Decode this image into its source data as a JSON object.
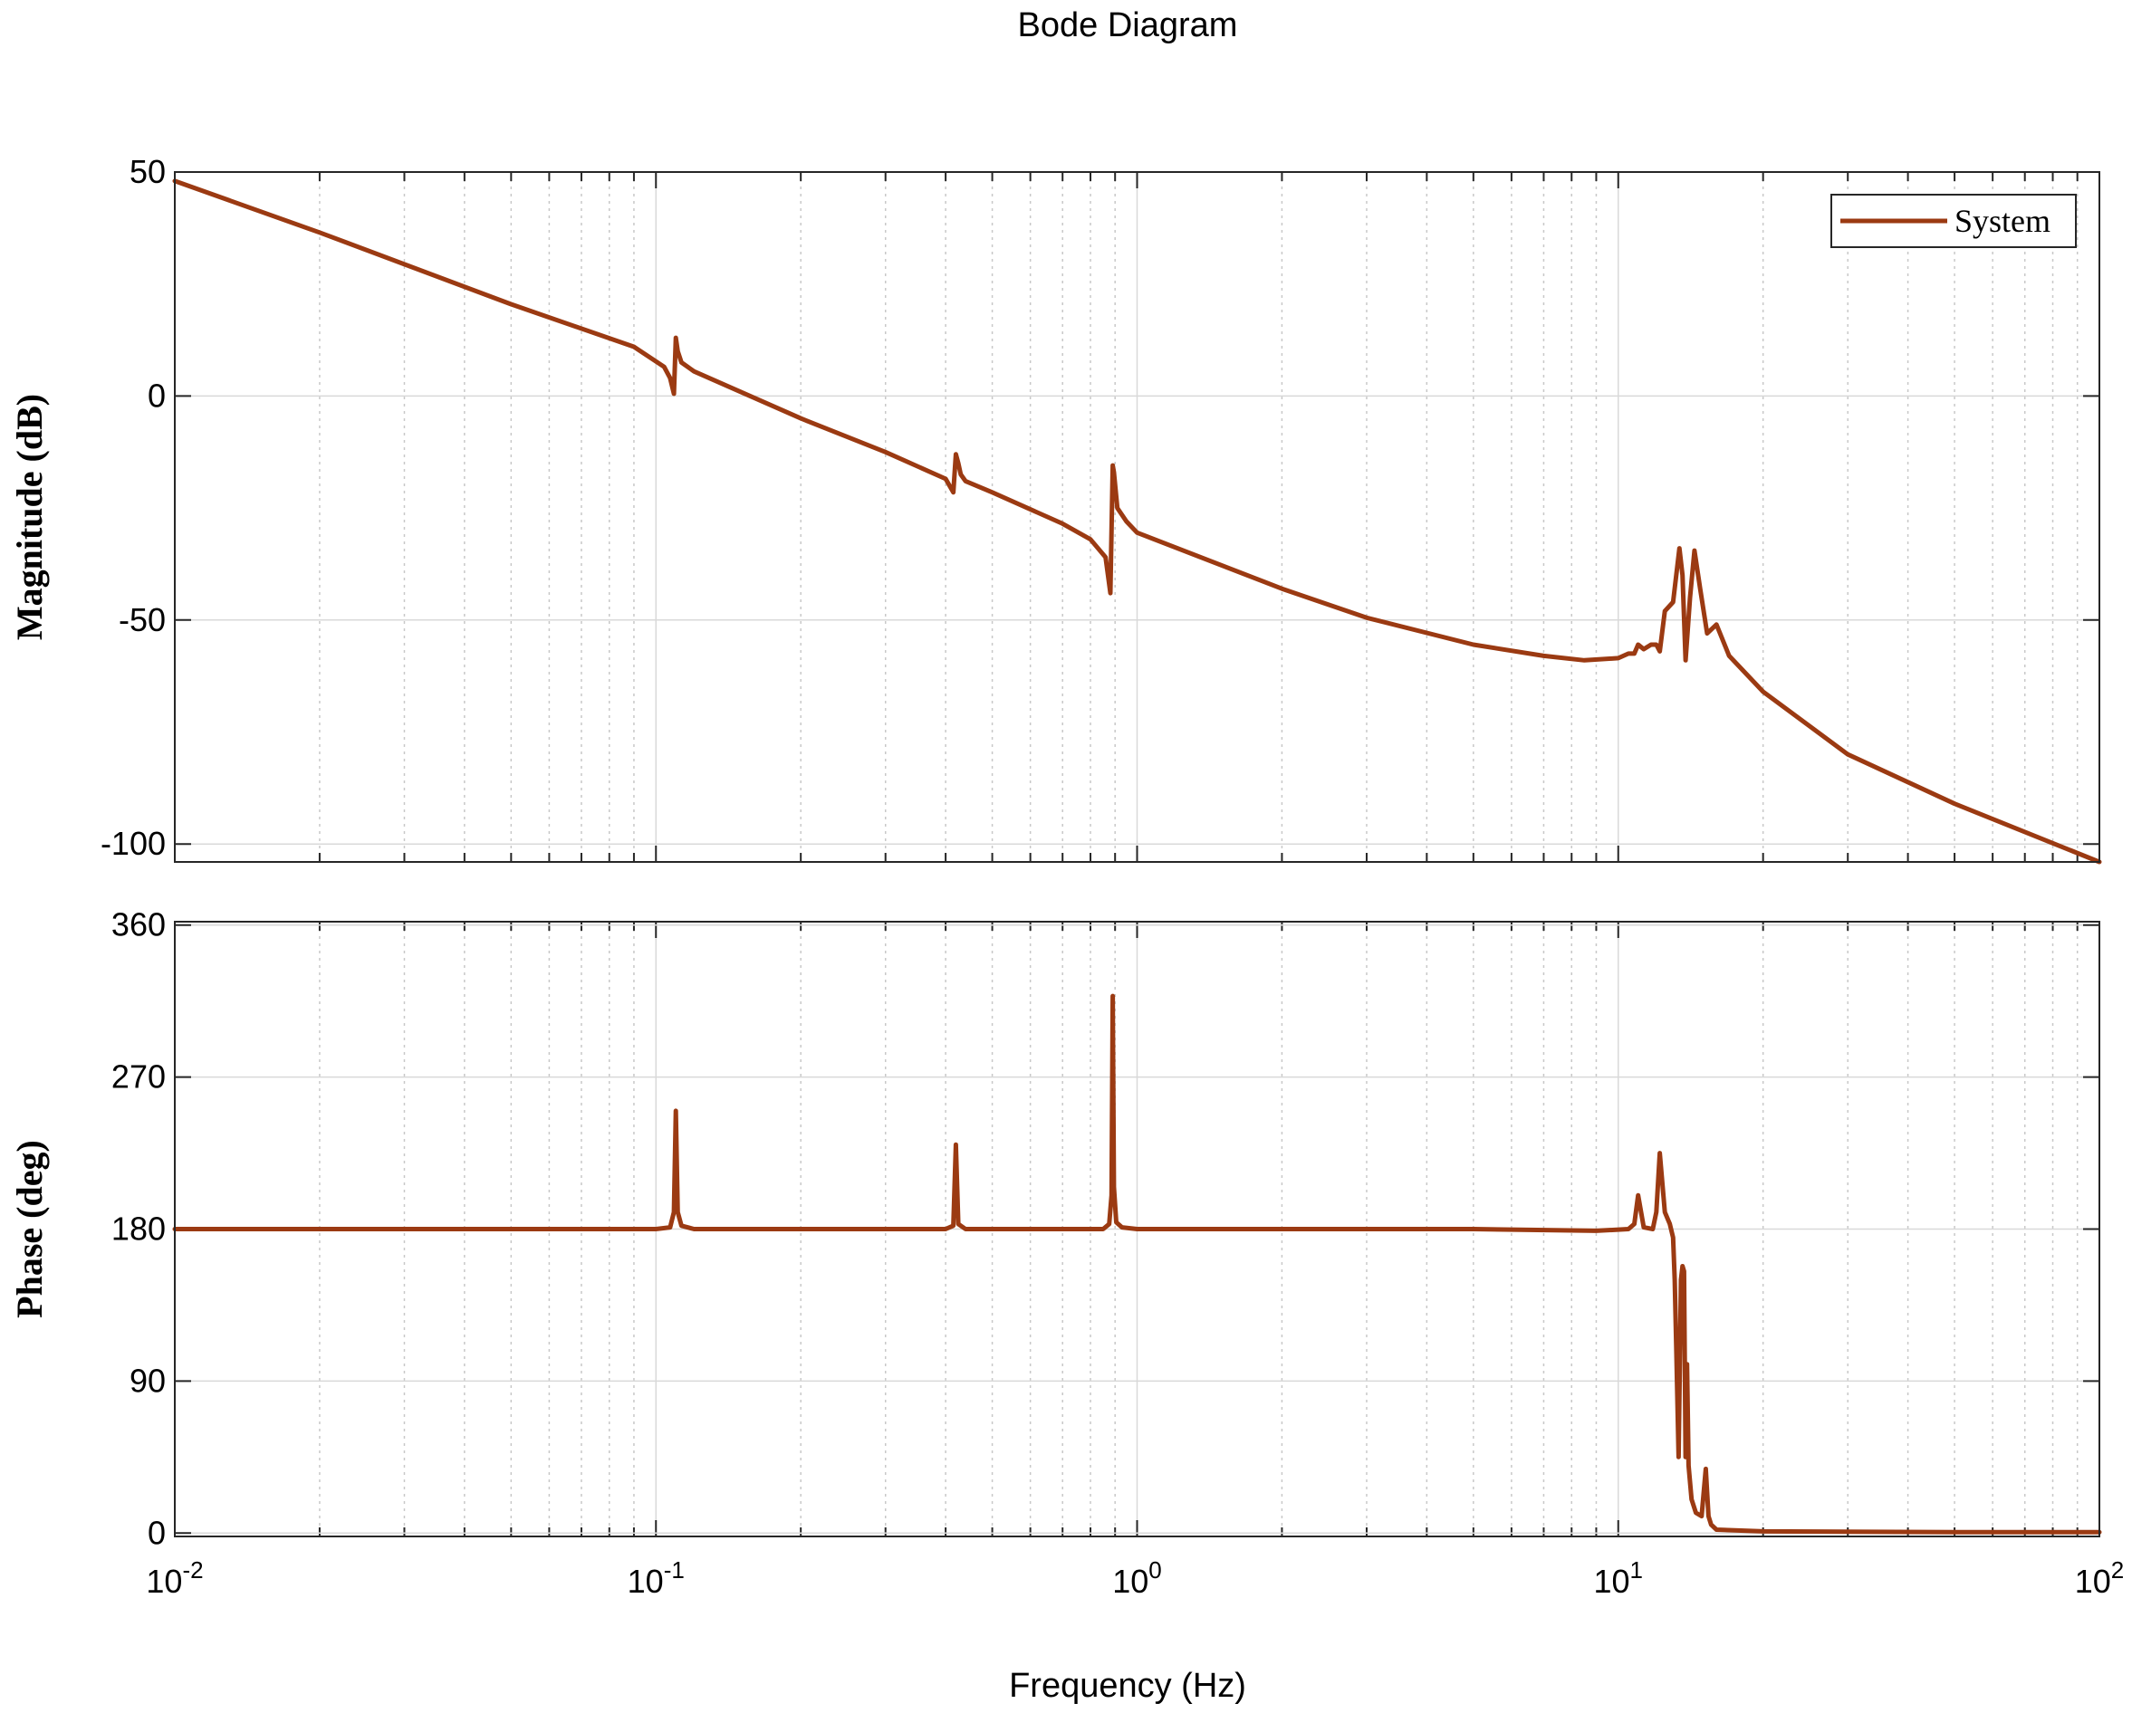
{
  "chart_data": {
    "type": "line",
    "title": "Bode Diagram",
    "xlabel": "Frequency  (Hz)",
    "xscale": "log",
    "xlim": [
      0.01,
      100
    ],
    "x_tick_labels": [
      {
        "base": "10",
        "exp": "-2",
        "value": 0.01
      },
      {
        "base": "10",
        "exp": "-1",
        "value": 0.1
      },
      {
        "base": "10",
        "exp": "0",
        "value": 1
      },
      {
        "base": "10",
        "exp": "1",
        "value": 10
      },
      {
        "base": "10",
        "exp": "2",
        "value": 100
      }
    ],
    "grid": true,
    "color": "#9b3a12",
    "panels": [
      {
        "id": "magnitude",
        "ylabel": "Magnitude (dB)",
        "ylim": [
          -104,
          50
        ],
        "yticks": [
          50,
          0,
          -50,
          -100
        ],
        "ytick_labels": [
          "50",
          "0",
          "-50",
          "-100"
        ],
        "legend": {
          "position": "top-right",
          "entries": [
            "System"
          ]
        },
        "series": [
          {
            "name": "System",
            "x": [
              0.01,
              0.02,
              0.05,
              0.09,
              0.104,
              0.107,
              0.109,
              0.11,
              0.111,
              0.113,
              0.12,
              0.2,
              0.3,
              0.4,
              0.415,
              0.42,
              0.425,
              0.43,
              0.44,
              0.5,
              0.7,
              0.8,
              0.86,
              0.88,
              0.89,
              0.895,
              0.91,
              0.95,
              1.0,
              2.0,
              3.0,
              5.0,
              7.0,
              8.5,
              10.0,
              10.5,
              10.8,
              11.0,
              11.3,
              11.7,
              12.0,
              12.2,
              12.5,
              13.0,
              13.4,
              13.6,
              13.8,
              14.1,
              14.4,
              14.8,
              15.3,
              16.0,
              17.0,
              20.0,
              30.0,
              50.0,
              100.0
            ],
            "values": [
              48,
              36.5,
              20.5,
              11,
              6.5,
              4,
              0.5,
              13,
              10,
              7.5,
              5.5,
              -5,
              -12.5,
              -18.5,
              -21.5,
              -13,
              -15,
              -17.5,
              -19,
              -21.5,
              -28.5,
              -32,
              -36,
              -44,
              -15.5,
              -17,
              -25,
              -28,
              -30.5,
              -43,
              -49.5,
              -55.5,
              -58,
              -59,
              -58.5,
              -57.5,
              -57.5,
              -55.5,
              -56.5,
              -55.5,
              -55.5,
              -57,
              -48,
              -46,
              -34,
              -40,
              -59,
              -45,
              -34.5,
              -43,
              -53,
              -51,
              -58,
              -66,
              -80,
              -91,
              -104
            ]
          }
        ]
      },
      {
        "id": "phase",
        "ylabel": "Phase (deg)",
        "ylim": [
          -2,
          362
        ],
        "yticks": [
          360,
          270,
          180,
          90,
          0
        ],
        "ytick_labels": [
          "360",
          "270",
          "180",
          "90",
          "0"
        ],
        "series": [
          {
            "name": "System",
            "x": [
              0.01,
              0.1,
              0.107,
              0.109,
              0.11,
              0.111,
              0.113,
              0.12,
              0.4,
              0.415,
              0.42,
              0.425,
              0.44,
              0.85,
              0.875,
              0.885,
              0.89,
              0.895,
              0.905,
              0.93,
              1.0,
              5.0,
              9.0,
              10.5,
              10.8,
              11.0,
              11.3,
              11.8,
              12.0,
              12.2,
              12.5,
              12.8,
              13.0,
              13.1,
              13.2,
              13.35,
              13.5,
              13.6,
              13.7,
              13.8,
              13.9,
              14.0,
              14.2,
              14.5,
              14.9,
              15.2,
              15.4,
              15.6,
              16.0,
              20.0,
              50.0,
              100.0
            ],
            "values": [
              180,
              180,
              181,
              190,
              250,
              190,
              182,
              180,
              180,
              182,
              230,
              183,
              180,
              180,
              183,
              200,
              318,
              205,
              184,
              181,
              180,
              180,
              179,
              180,
              183,
              200,
              181,
              180,
              190,
              225,
              190,
              183,
              175,
              150,
              110,
              45,
              150,
              158,
              155,
              45,
              100,
              40,
              20,
              12,
              10,
              38,
              10,
              5,
              2,
              1,
              0.5,
              0.5
            ]
          }
        ]
      }
    ]
  }
}
